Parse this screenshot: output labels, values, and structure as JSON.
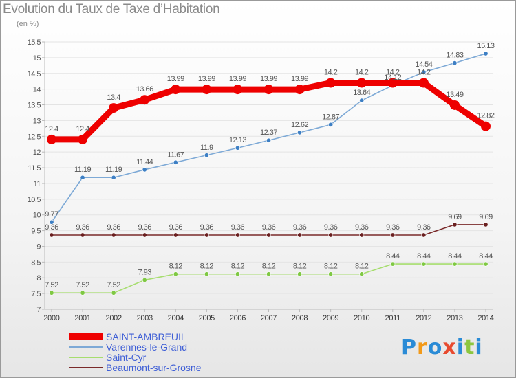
{
  "title": "Evolution du Taux de Taxe d’Habitation",
  "subtitle": "(en %)",
  "colors": {
    "background": "#ffffff",
    "grid": "#e4e4e4",
    "axis": "#bbbbbb",
    "text": "#555555",
    "legend_text": "#3f5fd6"
  },
  "logo": {
    "text": "Proxiti",
    "letters": [
      {
        "ch": "P",
        "color": "#2a8bd6"
      },
      {
        "ch": "r",
        "color": "#f29a1a"
      },
      {
        "ch": "o",
        "color": "#2a8bd6"
      },
      {
        "ch": "x",
        "color": "#e74a2f"
      },
      {
        "ch": "i",
        "color": "#2a8bd6"
      },
      {
        "ch": "t",
        "color": "#8cc63f"
      },
      {
        "ch": "i",
        "color": "#2a8bd6"
      }
    ]
  },
  "chart_data": {
    "type": "line",
    "title": "Evolution du Taux de Taxe d’Habitation",
    "ylabel": "(en %)",
    "xlabel": "",
    "x": [
      "2000",
      "2001",
      "2002",
      "2003",
      "2004",
      "2005",
      "2006",
      "2007",
      "2008",
      "2009",
      "2010",
      "2011",
      "2012",
      "2013",
      "2014"
    ],
    "ylim": [
      7,
      15.5
    ],
    "yticks": [
      "7",
      "7.5",
      "8",
      "8.5",
      "9",
      "9.5",
      "10",
      "10.5",
      "11",
      "11.5",
      "12",
      "12.5",
      "13",
      "13.5",
      "14",
      "14.5",
      "15",
      "15.5"
    ],
    "grid": true,
    "legend_position": "bottom-left",
    "series": [
      {
        "name": "SAINT-AMBREUIL",
        "color": "#ee0000",
        "marker_color": "#ee0000",
        "values": [
          12.4,
          12.4,
          13.4,
          13.66,
          13.99,
          13.99,
          13.99,
          13.99,
          13.99,
          14.2,
          14.2,
          14.2,
          14.2,
          13.49,
          12.82
        ],
        "labels": [
          "12.4",
          "12.4",
          "13.4",
          "13.66",
          "13.99",
          "13.99",
          "13.99",
          "13.99",
          "13.99",
          "14.2",
          "14.2",
          "14.2",
          "14.2",
          "13.49",
          "12.82"
        ]
      },
      {
        "name": "Varennes-le-Grand",
        "color": "#7da9d6",
        "marker_color": "#3d7fc4",
        "values": [
          9.77,
          11.19,
          11.19,
          11.44,
          11.67,
          11.9,
          12.13,
          12.37,
          12.62,
          12.87,
          13.64,
          14.12,
          14.54,
          14.83,
          15.13
        ],
        "labels": [
          "9.77",
          "11.19",
          "11.19",
          "11.44",
          "11.67",
          "11.9",
          "12.13",
          "12.37",
          "12.62",
          "12.87",
          "13.64",
          "14.12",
          "14.54",
          "14.83",
          "15.13"
        ]
      },
      {
        "name": "Saint-Cyr",
        "color": "#a6dd6e",
        "marker_color": "#7fc843",
        "values": [
          7.52,
          7.52,
          7.52,
          7.93,
          8.12,
          8.12,
          8.12,
          8.12,
          8.12,
          8.12,
          8.12,
          8.44,
          8.44,
          8.44,
          8.44
        ],
        "labels": [
          "7.52",
          "7.52",
          "7.52",
          "7.93",
          "8.12",
          "8.12",
          "8.12",
          "8.12",
          "8.12",
          "8.12",
          "8.12",
          "8.44",
          "8.44",
          "8.44",
          "8.44"
        ]
      },
      {
        "name": "Beaumont-sur-Grosne",
        "color": "#7a2a2a",
        "marker_color": "#6a1f1f",
        "values": [
          9.36,
          9.36,
          9.36,
          9.36,
          9.36,
          9.36,
          9.36,
          9.36,
          9.36,
          9.36,
          9.36,
          9.36,
          9.36,
          9.69,
          9.69
        ],
        "labels": [
          "9.36",
          "9.36",
          "9.36",
          "9.36",
          "9.36",
          "9.36",
          "9.36",
          "9.36",
          "9.36",
          "9.36",
          "9.36",
          "9.36",
          "9.36",
          "9.69",
          "9.69"
        ]
      }
    ]
  }
}
